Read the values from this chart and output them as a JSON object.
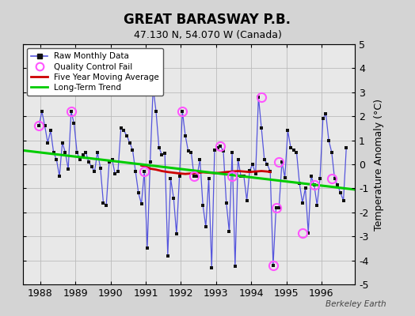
{
  "title": "GREAT BARASWAY P.B.",
  "subtitle": "47.130 N, 54.070 W (Canada)",
  "ylabel": "Temperature Anomaly (°C)",
  "credit": "Berkeley Earth",
  "xlim": [
    1987.5,
    1996.95
  ],
  "ylim": [
    -5,
    5
  ],
  "yticks": [
    -5,
    -4,
    -3,
    -2,
    -1,
    0,
    1,
    2,
    3,
    4,
    5
  ],
  "xticks": [
    1988,
    1989,
    1990,
    1991,
    1992,
    1993,
    1994,
    1995,
    1996
  ],
  "fig_bg_color": "#d4d4d4",
  "plot_bg_color": "#e8e8e8",
  "raw_data_times": [
    1987.958,
    1988.042,
    1988.125,
    1988.208,
    1988.292,
    1988.375,
    1988.458,
    1988.542,
    1988.625,
    1988.708,
    1988.792,
    1988.875,
    1988.958,
    1989.042,
    1989.125,
    1989.208,
    1989.292,
    1989.375,
    1989.458,
    1989.542,
    1989.625,
    1989.708,
    1989.792,
    1989.875,
    1989.958,
    1990.042,
    1990.125,
    1990.208,
    1990.292,
    1990.375,
    1990.458,
    1990.542,
    1990.625,
    1990.708,
    1990.792,
    1990.875,
    1990.958,
    1991.042,
    1991.125,
    1991.208,
    1991.292,
    1991.375,
    1991.458,
    1991.542,
    1991.625,
    1991.708,
    1991.792,
    1991.875,
    1991.958,
    1992.042,
    1992.125,
    1992.208,
    1992.292,
    1992.375,
    1992.458,
    1992.542,
    1992.625,
    1992.708,
    1992.792,
    1992.875,
    1992.958,
    1993.042,
    1993.125,
    1993.208,
    1993.292,
    1993.375,
    1993.458,
    1993.542,
    1993.625,
    1993.708,
    1993.792,
    1993.875,
    1993.958,
    1994.042,
    1994.125,
    1994.208,
    1994.292,
    1994.375,
    1994.458,
    1994.542,
    1994.625,
    1994.708,
    1994.792,
    1994.875,
    1994.958,
    1995.042,
    1995.125,
    1995.208,
    1995.292,
    1995.375,
    1995.458,
    1995.542,
    1995.625,
    1995.708,
    1995.792,
    1995.875,
    1995.958,
    1996.042,
    1996.125,
    1996.208,
    1996.292,
    1996.375,
    1996.458,
    1996.542,
    1996.625,
    1996.708
  ],
  "raw_data_values": [
    1.6,
    2.2,
    1.6,
    0.9,
    1.4,
    0.5,
    0.2,
    -0.5,
    0.9,
    0.5,
    -0.2,
    2.2,
    1.7,
    0.5,
    0.2,
    0.4,
    0.5,
    0.1,
    -0.1,
    -0.3,
    0.5,
    -0.15,
    -1.6,
    -1.7,
    0.1,
    0.2,
    -0.4,
    -0.3,
    1.5,
    1.4,
    1.2,
    0.9,
    0.6,
    -0.3,
    -1.2,
    -1.65,
    -0.3,
    -3.5,
    0.1,
    3.2,
    2.2,
    0.7,
    0.4,
    0.45,
    -3.8,
    -0.6,
    -1.4,
    -2.9,
    -0.5,
    2.2,
    1.2,
    0.55,
    0.5,
    -0.5,
    -0.5,
    0.2,
    -1.7,
    -2.6,
    -0.6,
    -4.3,
    0.6,
    0.7,
    0.75,
    0.55,
    -1.6,
    -2.8,
    0.5,
    -4.25,
    0.2,
    -0.5,
    -0.5,
    -1.5,
    -0.25,
    0.0,
    -0.4,
    2.8,
    1.5,
    0.2,
    0.0,
    -0.3,
    -4.2,
    -1.8,
    -1.8,
    0.1,
    -0.55,
    1.4,
    0.7,
    0.6,
    0.5,
    -0.8,
    -1.6,
    -1.0,
    -2.85,
    -0.5,
    -0.85,
    -1.7,
    -0.6,
    1.9,
    2.1,
    1.0,
    0.5,
    -0.6,
    -0.85,
    -1.2,
    -1.5,
    0.7
  ],
  "qc_fail_times": [
    1987.958,
    1988.875,
    1990.958,
    1991.208,
    1992.042,
    1992.375,
    1993.125,
    1993.458,
    1994.292,
    1994.625,
    1994.708,
    1994.792,
    1995.458,
    1995.792,
    1996.292
  ],
  "qc_fail_values": [
    1.6,
    2.2,
    -0.3,
    3.2,
    2.2,
    -0.5,
    0.75,
    -0.5,
    2.8,
    -4.2,
    -1.8,
    0.1,
    -2.85,
    -0.85,
    -0.6
  ],
  "moving_avg_times": [
    1990.875,
    1991.0,
    1991.125,
    1991.292,
    1991.458,
    1991.625,
    1991.792,
    1991.958,
    1992.125,
    1992.292,
    1992.458,
    1992.625,
    1992.792,
    1992.958,
    1993.125,
    1993.292,
    1993.458,
    1993.625,
    1993.792,
    1993.958,
    1994.125,
    1994.292,
    1994.458,
    1994.542
  ],
  "moving_avg_values": [
    -0.05,
    -0.1,
    -0.18,
    -0.22,
    -0.28,
    -0.32,
    -0.35,
    -0.38,
    -0.4,
    -0.38,
    -0.36,
    -0.33,
    -0.35,
    -0.37,
    -0.35,
    -0.32,
    -0.3,
    -0.28,
    -0.3,
    -0.32,
    -0.3,
    -0.28,
    -0.3,
    -0.32
  ],
  "trend_times": [
    1987.5,
    1996.95
  ],
  "trend_values": [
    0.58,
    -1.05
  ],
  "raw_line_color": "#5555dd",
  "raw_marker_color": "#111111",
  "qc_marker_color": "#ff55ff",
  "moving_avg_color": "#cc0000",
  "trend_color": "#00cc00",
  "grid_color": "#bbbbbb"
}
